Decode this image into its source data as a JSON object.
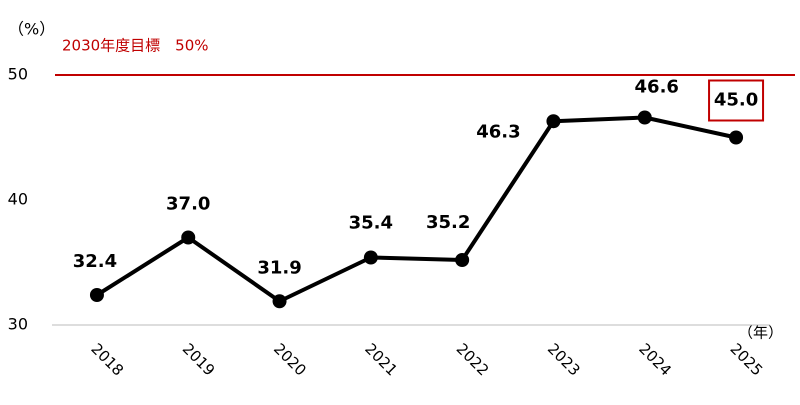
{
  "chart_data": {
    "type": "line",
    "y_label": "（%）",
    "x_label": "（年）",
    "categories": [
      "2018",
      "2019",
      "2020",
      "2021",
      "2022",
      "2023",
      "2024",
      "2025"
    ],
    "values": [
      32.4,
      37.0,
      31.9,
      35.4,
      35.2,
      46.3,
      46.6,
      45.0
    ],
    "value_labels": [
      "32.4",
      "37.0",
      "31.9",
      "35.4",
      "35.2",
      "46.3",
      "46.6",
      "45.0"
    ],
    "color": "#000000",
    "ylim": [
      30,
      50
    ],
    "yticks": [
      30,
      40,
      50
    ],
    "grid": false,
    "target_line": {
      "value": 50,
      "label": "2030年度目標　50%",
      "color": "#c00000"
    }
  }
}
